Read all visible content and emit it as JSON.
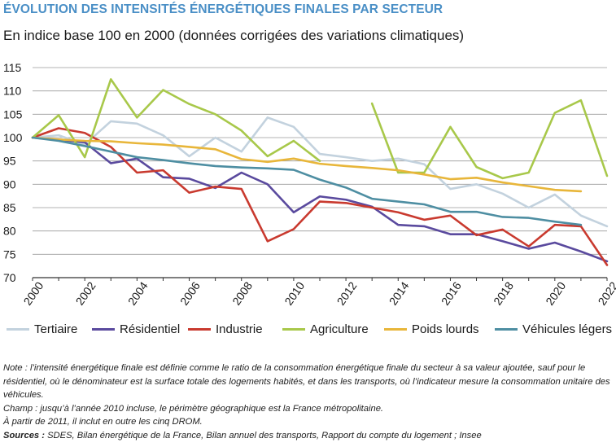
{
  "header": {
    "title": "ÉVOLUTION DES INTENSITÉS ÉNERGÉTIQUES FINALES PAR SECTEUR",
    "subtitle": "En indice base 100 en 2000 (données corrigées des variations climatiques)"
  },
  "chart_data": {
    "type": "line",
    "title": "ÉVOLUTION DES INTENSITÉS ÉNERGÉTIQUES FINALES PAR SECTEUR",
    "subtitle": "En indice base 100 en 2000 (données corrigées des variations climatiques)",
    "xlabel": "",
    "ylabel": "",
    "xlim": [
      2000,
      2022
    ],
    "ylim": [
      70,
      115
    ],
    "x_ticks": [
      "2000",
      "2002",
      "2004",
      "2006",
      "2008",
      "2010",
      "2012",
      "2014",
      "2016",
      "2018",
      "2020",
      "2022"
    ],
    "y_ticks": [
      "70",
      "75",
      "80",
      "85",
      "90",
      "95",
      "100",
      "105",
      "110",
      "115"
    ],
    "grid": true,
    "legend_position": "bottom",
    "x": [
      2000,
      2001,
      2002,
      2003,
      2004,
      2005,
      2006,
      2007,
      2008,
      2009,
      2010,
      2011,
      2012,
      2013,
      2014,
      2015,
      2016,
      2017,
      2018,
      2019,
      2020,
      2021,
      2022
    ],
    "series": [
      {
        "name": "Tertiaire",
        "color": "#c3d2de",
        "values": [
          100,
          100.5,
          98.5,
          103.5,
          103,
          100.5,
          96,
          100,
          97,
          104.3,
          102.3,
          96.5,
          95.8,
          95,
          95.5,
          94.3,
          89,
          90,
          88,
          85,
          87.8,
          83.3,
          81
        ]
      },
      {
        "name": "Résidentiel",
        "color": "#5a4a9e",
        "values": [
          100,
          99.5,
          99,
          94.5,
          95.5,
          91.5,
          91.2,
          89.2,
          92.5,
          90,
          84,
          87.4,
          86.7,
          85.2,
          81.3,
          81,
          79.3,
          79.3,
          77.8,
          76.2,
          77.5,
          75.6,
          73.5
        ]
      },
      {
        "name": "Industrie",
        "color": "#c93a2f",
        "values": [
          100,
          102,
          101,
          98,
          92.5,
          93,
          88.2,
          89.5,
          89,
          77.8,
          80.4,
          86.3,
          86,
          85,
          84,
          82.4,
          83.3,
          79.1,
          80.3,
          76.7,
          81.3,
          81,
          72.7
        ]
      },
      {
        "name": "Agriculture",
        "color": "#a8c84a",
        "values": [
          100,
          104.8,
          95.8,
          112.5,
          104.3,
          110.2,
          107.2,
          105,
          101.5,
          96,
          99.3,
          95,
          null,
          107.3,
          92.5,
          92.5,
          102.3,
          93.7,
          91.3,
          92.5,
          105.3,
          108,
          91.8
        ]
      },
      {
        "name": "Poids lourds",
        "color": "#e8b63a",
        "values": [
          100,
          99.6,
          99.3,
          99.2,
          98.8,
          98.5,
          98,
          97.5,
          95.4,
          94.8,
          95.5,
          94.4,
          93.9,
          93.5,
          93,
          92.1,
          91.1,
          91.4,
          90.4,
          89.6,
          88.8,
          88.5,
          null
        ]
      },
      {
        "name": "Véhicules légers",
        "color": "#4e8ea2",
        "values": [
          100,
          99.3,
          98.2,
          97,
          95.8,
          95.2,
          94.5,
          93.9,
          93.6,
          93.4,
          93.1,
          91,
          89.3,
          86.9,
          86.3,
          85.7,
          84.1,
          84.1,
          83,
          82.8,
          82,
          81.3,
          null
        ]
      }
    ]
  },
  "legend": [
    {
      "label": "Tertiaire"
    },
    {
      "label": "Résidentiel"
    },
    {
      "label": "Industrie"
    },
    {
      "label": "Agriculture"
    },
    {
      "label": "Poids lourds"
    },
    {
      "label": "Véhicules légers"
    }
  ],
  "notes": {
    "note": "Note : l’intensité énergétique finale est définie comme le ratio de la consommation énergétique finale du secteur à sa valeur ajoutée, sauf pour le résidentiel, où le dénominateur est la surface totale des logements habités, et dans les transports, où l’indicateur mesure la consommation unitaire des véhicules.",
    "champ": "Champ : jusqu’à l’année 2010 incluse, le périmètre géographique est la France métropolitaine.",
    "champ2": "À partir de 2011, il inclut en outre les cinq DROM.",
    "sources_label": "Sources :",
    "sources_text": " SDES, Bilan énergétique de la France, Bilan annuel des transports, Rapport du compte du logement ; Insee"
  }
}
